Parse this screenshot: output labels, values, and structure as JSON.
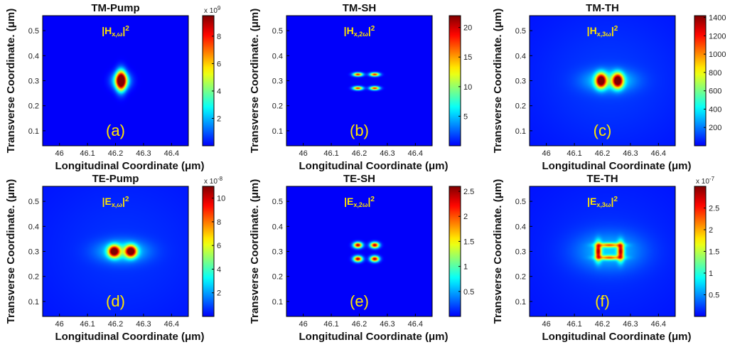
{
  "chart_data": [
    {
      "type": "heatmap",
      "title": "TM-Pump",
      "field_label": "|H",
      "field_sub": "x,ω",
      "field_sup": "2",
      "panel_label": "(a)",
      "xlabel": "Longitudinal Coordinate (μm)",
      "ylabel": "Transverse Coordinate. (μm)",
      "xlim": [
        45.94,
        46.46
      ],
      "ylim": [
        0.04,
        0.56
      ],
      "xticks": [
        46,
        46.1,
        46.2,
        46.3,
        46.4
      ],
      "xticklabels": [
        "46",
        "46.1",
        "46.2",
        "46.3",
        "46.4"
      ],
      "yticks": [
        0.1,
        0.2,
        0.3,
        0.4,
        0.5
      ],
      "yticklabels": [
        "0.1",
        "0.2",
        "0.3",
        "0.4",
        "0.5"
      ],
      "colorbar": {
        "min": 0,
        "max": 9.5,
        "ticks": [
          2,
          4,
          6,
          8
        ],
        "ticklabels": [
          "2",
          "4",
          "6",
          "8"
        ],
        "exponent": "x 10",
        "exponent_power": "9"
      },
      "hotspots": [
        {
          "x": 46.22,
          "y": 0.3,
          "sx": 0.012,
          "sy": 0.028,
          "amp": 1.0
        },
        {
          "x": 46.22,
          "y": 0.3,
          "sx": 0.022,
          "sy": 0.022,
          "amp": 0.45
        }
      ],
      "background": 0.0
    },
    {
      "type": "heatmap",
      "title": "TM-SH",
      "field_label": "|H",
      "field_sub": "x,2ω",
      "field_sup": "2",
      "panel_label": "(b)",
      "xlabel": "Longitudinal Coordinate (μm)",
      "ylabel": "Transverse Coordinate. (μm)",
      "xlim": [
        45.94,
        46.46
      ],
      "ylim": [
        0.04,
        0.56
      ],
      "xticks": [
        46,
        46.1,
        46.2,
        46.3,
        46.4
      ],
      "xticklabels": [
        "46",
        "46.1",
        "46.2",
        "46.3",
        "46.4"
      ],
      "yticks": [
        0.1,
        0.2,
        0.3,
        0.4,
        0.5
      ],
      "yticklabels": [
        "0.1",
        "0.2",
        "0.3",
        "0.4",
        "0.5"
      ],
      "colorbar": {
        "min": 0,
        "max": 22,
        "ticks": [
          5,
          10,
          15,
          20
        ],
        "ticklabels": [
          "5",
          "10",
          "15",
          "20"
        ],
        "exponent": "",
        "exponent_power": ""
      },
      "hotspots": [
        {
          "x": 46.195,
          "y": 0.325,
          "sx": 0.012,
          "sy": 0.005,
          "amp": 0.85
        },
        {
          "x": 46.255,
          "y": 0.325,
          "sx": 0.012,
          "sy": 0.005,
          "amp": 0.85
        },
        {
          "x": 46.195,
          "y": 0.27,
          "sx": 0.012,
          "sy": 0.005,
          "amp": 0.85
        },
        {
          "x": 46.255,
          "y": 0.27,
          "sx": 0.012,
          "sy": 0.005,
          "amp": 0.85
        }
      ],
      "background": 0.0
    },
    {
      "type": "heatmap",
      "title": "TM-TH",
      "field_label": "|H",
      "field_sub": "x,3ω",
      "field_sup": "2",
      "panel_label": "(c)",
      "xlabel": "Longitudinal Coordinate (μm)",
      "ylabel": "Transverse Coordinate. (μm)",
      "xlim": [
        45.94,
        46.46
      ],
      "ylim": [
        0.04,
        0.56
      ],
      "xticks": [
        46,
        46.1,
        46.2,
        46.3,
        46.4
      ],
      "xticklabels": [
        "46",
        "46.1",
        "46.2",
        "46.3",
        "46.4"
      ],
      "yticks": [
        0.1,
        0.2,
        0.3,
        0.4,
        0.5
      ],
      "yticklabels": [
        "0.1",
        "0.2",
        "0.3",
        "0.4",
        "0.5"
      ],
      "colorbar": {
        "min": 0,
        "max": 1420,
        "ticks": [
          200,
          400,
          600,
          800,
          1000,
          1200,
          1400
        ],
        "ticklabels": [
          "200",
          "400",
          "600",
          "800",
          "1000",
          "1200",
          "1400"
        ],
        "exponent": "",
        "exponent_power": ""
      },
      "hotspots": [
        {
          "x": 46.195,
          "y": 0.3,
          "sx": 0.013,
          "sy": 0.02,
          "amp": 1.0
        },
        {
          "x": 46.255,
          "y": 0.3,
          "sx": 0.013,
          "sy": 0.02,
          "amp": 1.0
        },
        {
          "x": 46.225,
          "y": 0.3,
          "sx": 0.06,
          "sy": 0.03,
          "amp": 0.25
        },
        {
          "x": 46.225,
          "y": 0.3,
          "sx": 0.2,
          "sy": 0.2,
          "amp": 0.05
        }
      ],
      "background": 0.02
    },
    {
      "type": "heatmap",
      "title": "TE-Pump",
      "field_label": "|E",
      "field_sub": "x,ω",
      "field_sup": "2",
      "panel_label": "(d)",
      "xlabel": "Longitudinal Coordinate (μm)",
      "ylabel": "Transverse Coordinate. (μm)",
      "xlim": [
        45.94,
        46.46
      ],
      "ylim": [
        0.04,
        0.56
      ],
      "xticks": [
        46,
        46.1,
        46.2,
        46.3,
        46.4
      ],
      "xticklabels": [
        "46",
        "46.1",
        "46.2",
        "46.3",
        "46.4"
      ],
      "yticks": [
        0.1,
        0.2,
        0.3,
        0.4,
        0.5
      ],
      "yticklabels": [
        "0.1",
        "0.2",
        "0.3",
        "0.4",
        "0.5"
      ],
      "colorbar": {
        "min": 0,
        "max": 11,
        "ticks": [
          2,
          4,
          6,
          8,
          10
        ],
        "ticklabels": [
          "2",
          "4",
          "6",
          "8",
          "10"
        ],
        "exponent": "x 10",
        "exponent_power": "-8"
      },
      "hotspots": [
        {
          "x": 46.195,
          "y": 0.3,
          "sx": 0.014,
          "sy": 0.016,
          "amp": 1.0
        },
        {
          "x": 46.255,
          "y": 0.3,
          "sx": 0.014,
          "sy": 0.016,
          "amp": 1.0
        },
        {
          "x": 46.225,
          "y": 0.3,
          "sx": 0.06,
          "sy": 0.03,
          "amp": 0.25
        },
        {
          "x": 46.225,
          "y": 0.3,
          "sx": 0.22,
          "sy": 0.22,
          "amp": 0.04
        }
      ],
      "background": 0.02
    },
    {
      "type": "heatmap",
      "title": "TE-SH",
      "field_label": "|E",
      "field_sub": "x,2ω",
      "field_sup": "2",
      "panel_label": "(e)",
      "xlabel": "Longitudinal Coordinate (μm)",
      "ylabel": "Transverse Coordinate. (μm)",
      "xlim": [
        45.94,
        46.46
      ],
      "ylim": [
        0.04,
        0.56
      ],
      "xticks": [
        46,
        46.1,
        46.2,
        46.3,
        46.4
      ],
      "xticklabels": [
        "46",
        "46.1",
        "46.2",
        "46.3",
        "46.4"
      ],
      "yticks": [
        0.1,
        0.2,
        0.3,
        0.4,
        0.5
      ],
      "yticklabels": [
        "0.1",
        "0.2",
        "0.3",
        "0.4",
        "0.5"
      ],
      "colorbar": {
        "min": 0,
        "max": 2.6,
        "ticks": [
          0.5,
          1,
          1.5,
          2,
          2.5
        ],
        "ticklabels": [
          "0.5",
          "1",
          "1.5",
          "2",
          "2.5"
        ],
        "exponent": "",
        "exponent_power": ""
      },
      "hotspots": [
        {
          "x": 46.195,
          "y": 0.325,
          "sx": 0.011,
          "sy": 0.008,
          "amp": 0.95
        },
        {
          "x": 46.255,
          "y": 0.325,
          "sx": 0.011,
          "sy": 0.008,
          "amp": 0.95
        },
        {
          "x": 46.195,
          "y": 0.27,
          "sx": 0.011,
          "sy": 0.008,
          "amp": 0.95
        },
        {
          "x": 46.255,
          "y": 0.27,
          "sx": 0.011,
          "sy": 0.008,
          "amp": 0.95
        }
      ],
      "background": 0.0
    },
    {
      "type": "heatmap",
      "title": "TE-TH",
      "field_label": "|E",
      "field_sub": "x,3ω",
      "field_sup": "2",
      "panel_label": "(f)",
      "xlabel": "Longitudinal Coordinate (μm)",
      "ylabel": "Transverse Coordinate. (μm)",
      "xlim": [
        45.94,
        46.46
      ],
      "ylim": [
        0.04,
        0.56
      ],
      "xticks": [
        46,
        46.1,
        46.2,
        46.3,
        46.4
      ],
      "xticklabels": [
        "46",
        "46.1",
        "46.2",
        "46.3",
        "46.4"
      ],
      "yticks": [
        0.1,
        0.2,
        0.3,
        0.4,
        0.5
      ],
      "yticklabels": [
        "0.1",
        "0.2",
        "0.3",
        "0.4",
        "0.5"
      ],
      "colorbar": {
        "min": 0,
        "max": 3.0,
        "ticks": [
          0.5,
          1,
          1.5,
          2,
          2.5
        ],
        "ticklabels": [
          "0.5",
          "1",
          "1.5",
          "2",
          "2.5"
        ],
        "exponent": "x 10",
        "exponent_power": "-7"
      },
      "hotspots": [
        {
          "x": 46.185,
          "y": 0.3,
          "sx": 0.008,
          "sy": 0.025,
          "amp": 0.75
        },
        {
          "x": 46.265,
          "y": 0.3,
          "sx": 0.008,
          "sy": 0.025,
          "amp": 0.75
        },
        {
          "x": 46.225,
          "y": 0.325,
          "sx": 0.03,
          "sy": 0.006,
          "amp": 0.55
        },
        {
          "x": 46.225,
          "y": 0.275,
          "sx": 0.03,
          "sy": 0.006,
          "amp": 0.55
        },
        {
          "x": 46.225,
          "y": 0.3,
          "sx": 0.08,
          "sy": 0.05,
          "amp": 0.18
        },
        {
          "x": 46.225,
          "y": 0.3,
          "sx": 0.2,
          "sy": 0.2,
          "amp": 0.04
        }
      ],
      "background": 0.02
    }
  ]
}
